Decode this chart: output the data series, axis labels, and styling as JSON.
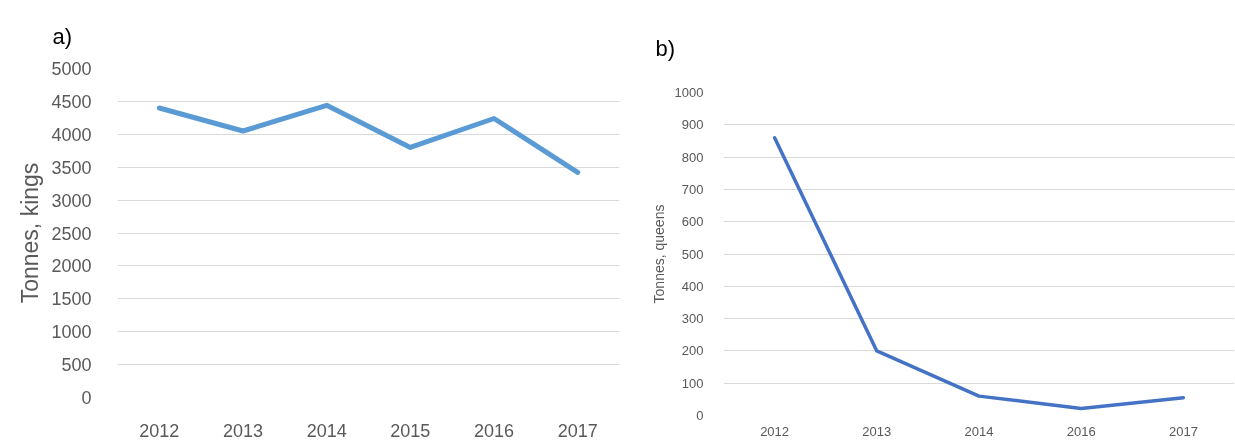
{
  "chart_data": [
    {
      "type": "line",
      "title": "a)",
      "ylabel": "Tonnes, kings",
      "categories": [
        "2012",
        "2013",
        "2014",
        "2015",
        "2016",
        "2017"
      ],
      "values": [
        4400,
        4050,
        4440,
        3800,
        4240,
        3420
      ],
      "color": "#5b9bd5",
      "ylim": [
        0,
        5000
      ],
      "yticks": [
        0,
        500,
        1000,
        1500,
        2000,
        2500,
        3000,
        3500,
        4000,
        4500,
        5000
      ],
      "grid": "y",
      "marker": "none"
    },
    {
      "type": "line",
      "title": "b)",
      "ylabel": "Tonnes, queens",
      "categories": [
        "2012",
        "2013",
        "2014",
        "2016",
        "2017"
      ],
      "values": [
        860,
        200,
        60,
        22,
        55
      ],
      "color": "#4472c4",
      "ylim": [
        0,
        1000
      ],
      "yticks": [
        0,
        100,
        200,
        300,
        400,
        500,
        600,
        700,
        800,
        900,
        1000
      ],
      "grid": "y",
      "marker": "none"
    }
  ]
}
